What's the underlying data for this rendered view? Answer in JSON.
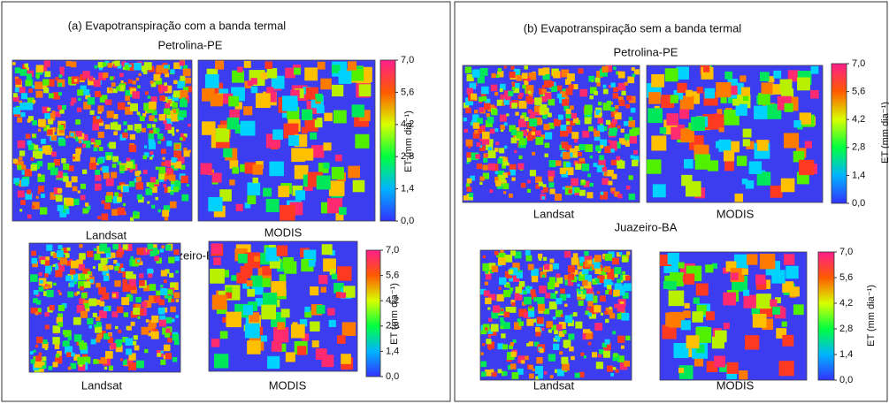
{
  "colorbar": {
    "ticks": [
      {
        "value": 0,
        "label": "0,0"
      },
      {
        "value": 1.4,
        "label": "1,4"
      },
      {
        "value": 2.8,
        "label": "2,8"
      },
      {
        "value": 4.2,
        "label": "4,2"
      },
      {
        "value": 5.6,
        "label": "5,6"
      },
      {
        "value": 7,
        "label": "7,0"
      }
    ],
    "range": [
      0,
      7
    ],
    "label": "ET (mm dia⁻¹)"
  },
  "panels": [
    {
      "title": "(a) Evapotranspiração com a banda termal",
      "sites": [
        {
          "name": "Petrolina-PE",
          "maps": [
            "Landsat",
            "MODIS"
          ]
        },
        {
          "name": "Juazeiro-BA",
          "maps": [
            "Landsat",
            "MODIS"
          ]
        }
      ]
    },
    {
      "title": "(b) Evapotranspiração sem a banda termal",
      "sites": [
        {
          "name": "Petrolina-PE",
          "maps": [
            "Landsat",
            "MODIS"
          ]
        },
        {
          "name": "Juazeiro-BA",
          "maps": [
            "Landsat",
            "MODIS"
          ]
        }
      ]
    }
  ]
}
